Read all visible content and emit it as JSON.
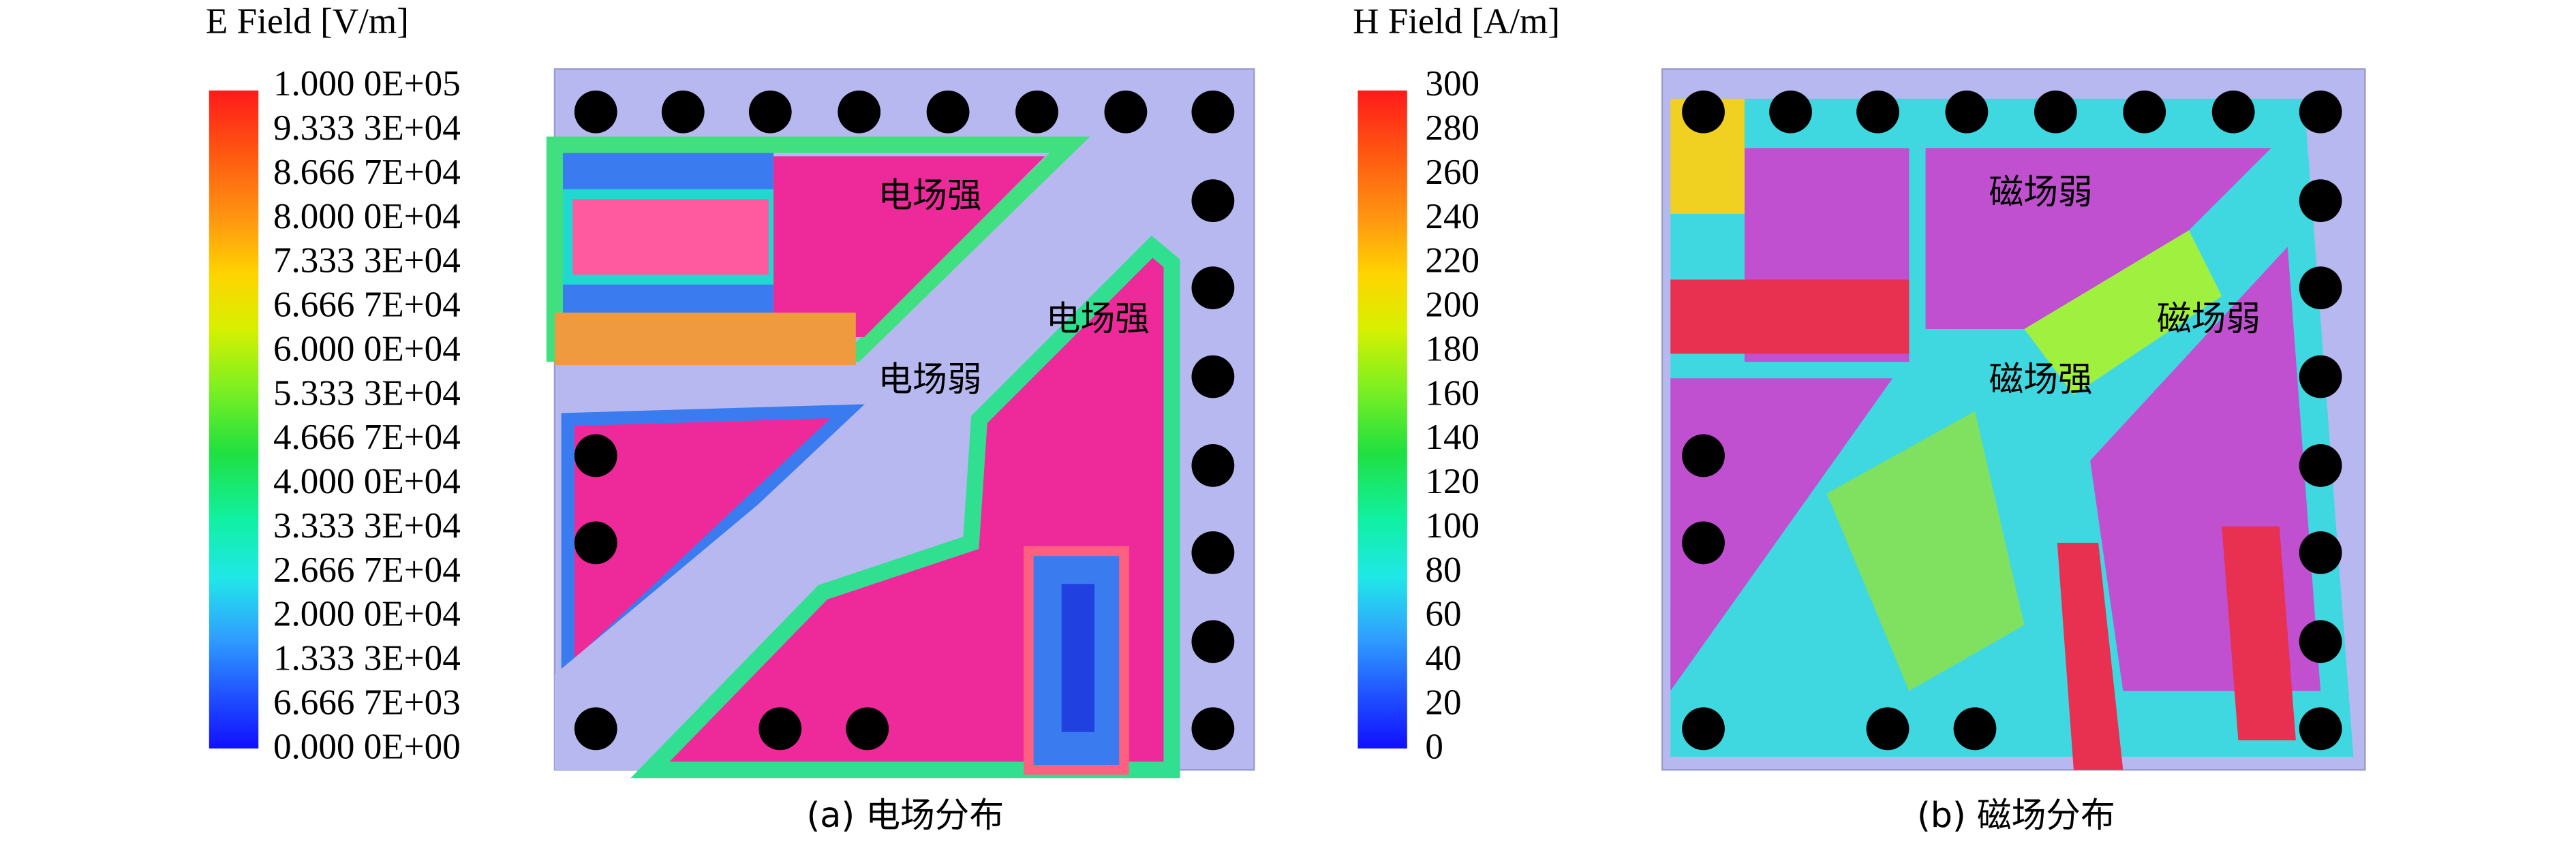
{
  "panels": [
    {
      "title": "E Field [V/m]",
      "colorbar_labels": [
        "1.000 0E+05",
        "9.333 3E+04",
        "8.666 7E+04",
        "8.000 0E+04",
        "7.333 3E+04",
        "6.666 7E+04",
        "6.000 0E+04",
        "5.333 3E+04",
        "4.666 7E+04",
        "4.000 0E+04",
        "3.333 3E+04",
        "2.666 7E+04",
        "2.000 0E+04",
        "1.333 3E+04",
        "6.666 7E+03",
        "0.000 0E+00"
      ],
      "annotations": [
        "电场强",
        "电场强",
        "电场弱"
      ],
      "caption": "(a) 电场分布"
    },
    {
      "title": "H Field [A/m]",
      "colorbar_labels": [
        300,
        280,
        260,
        240,
        220,
        200,
        180,
        160,
        140,
        120,
        100,
        80,
        60,
        40,
        20,
        0
      ],
      "annotations": [
        "磁场弱",
        "磁场弱",
        "磁场强"
      ],
      "caption": "(b) 磁场分布"
    }
  ]
}
